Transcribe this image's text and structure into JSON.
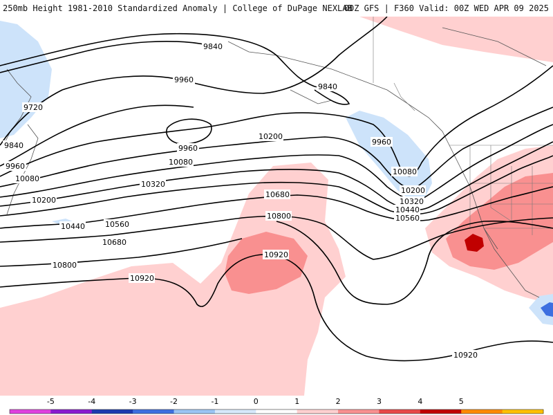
{
  "header": {
    "title_left": "250mb Height 1981-2010 Standardized Anomaly | College of DuPage NEXLAB",
    "title_right": "00Z GFS | F360 Valid: 00Z WED APR 09 2025"
  },
  "contour_labels": [
    "9720",
    "9840",
    "9840",
    "9840",
    "9960",
    "9960",
    "9960",
    "9960",
    "10080",
    "10080",
    "10080",
    "10200",
    "10200",
    "10200",
    "10320",
    "10320",
    "10440",
    "10440",
    "10560",
    "10560",
    "10680",
    "10680",
    "10800",
    "10800",
    "10920",
    "10920",
    "10920"
  ],
  "legend": {
    "ticks": [
      "-5",
      "-4",
      "-3",
      "-2",
      "-1",
      "0",
      "1",
      "2",
      "3",
      "4",
      "5"
    ],
    "colors": [
      "#e040e0",
      "#8a1ad0",
      "#1c3ab0",
      "#3d6fe0",
      "#9ac4f4",
      "#d6e8fb",
      "#ffffff",
      "#ffd0d0",
      "#f99090",
      "#e84848",
      "#c00000",
      "#ff8a00",
      "#ffc000"
    ]
  },
  "map_colors": {
    "positive_light": "#ffd0d0",
    "positive_mid": "#f99090",
    "positive_strong": "#e84848",
    "positive_max": "#c00000",
    "negative_light": "#cde3fa",
    "negative_mid": "#9ac4f4",
    "negative_strong": "#3d6fe0"
  }
}
